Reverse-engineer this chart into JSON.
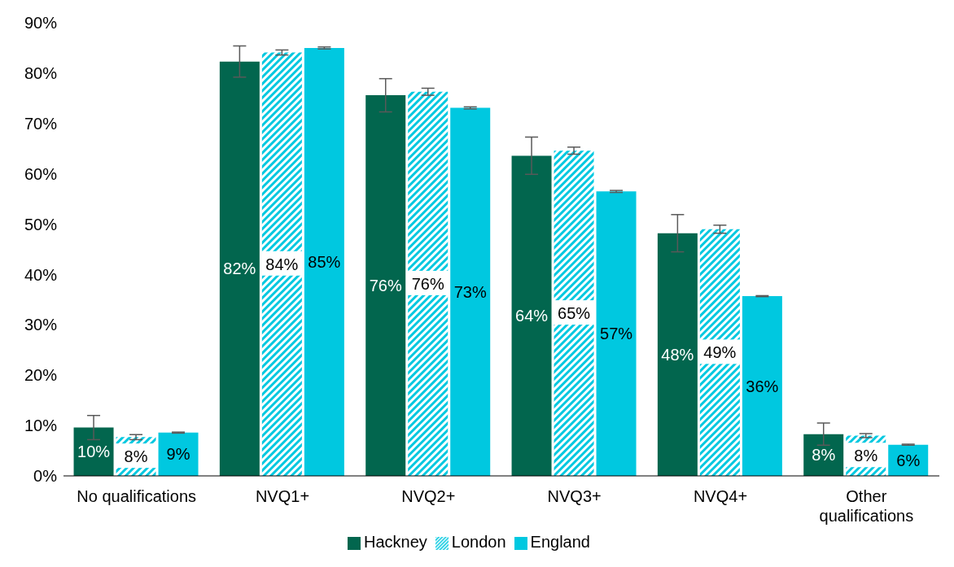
{
  "chart_data": {
    "type": "bar",
    "categories": [
      "No qualifications",
      "NVQ1+",
      "NVQ2+",
      "NVQ3+",
      "NVQ4+",
      "Other qualifications"
    ],
    "series": [
      {
        "name": "Hackney",
        "color": "#02664e",
        "values": [
          9.6,
          82.3,
          75.6,
          63.6,
          48.2,
          8.3
        ],
        "errors": [
          2.4,
          3.1,
          3.3,
          3.7,
          3.7,
          2.2
        ],
        "value_labels": [
          "10%",
          "82%",
          "76%",
          "64%",
          "48%",
          "8%"
        ]
      },
      {
        "name": "London",
        "color": "#00c8e0",
        "values": [
          7.7,
          84.1,
          76.3,
          64.6,
          49.0,
          8.0
        ],
        "errors": [
          0.5,
          0.5,
          0.7,
          0.7,
          0.8,
          0.4
        ],
        "value_labels": [
          "8%",
          "84%",
          "76%",
          "65%",
          "49%",
          "8%"
        ]
      },
      {
        "name": "England",
        "color": "#00c8e0",
        "values": [
          8.6,
          85.0,
          73.1,
          56.5,
          35.7,
          6.2
        ],
        "errors": [
          0.1,
          0.2,
          0.2,
          0.2,
          0.1,
          0.1
        ],
        "value_labels": [
          "9%",
          "85%",
          "73%",
          "57%",
          "36%",
          "6%"
        ]
      }
    ],
    "ylim": [
      0,
      90
    ],
    "yticks": [
      {
        "value": 0,
        "label": "0%"
      },
      {
        "value": 10,
        "label": "10%"
      },
      {
        "value": 20,
        "label": "20%"
      },
      {
        "value": 30,
        "label": "30%"
      },
      {
        "value": 40,
        "label": "40%"
      },
      {
        "value": 50,
        "label": "50%"
      },
      {
        "value": 60,
        "label": "60%"
      },
      {
        "value": 70,
        "label": "70%"
      },
      {
        "value": 80,
        "label": "80%"
      },
      {
        "value": 90,
        "label": "90%"
      }
    ],
    "grid": false,
    "legend": "bottom"
  }
}
